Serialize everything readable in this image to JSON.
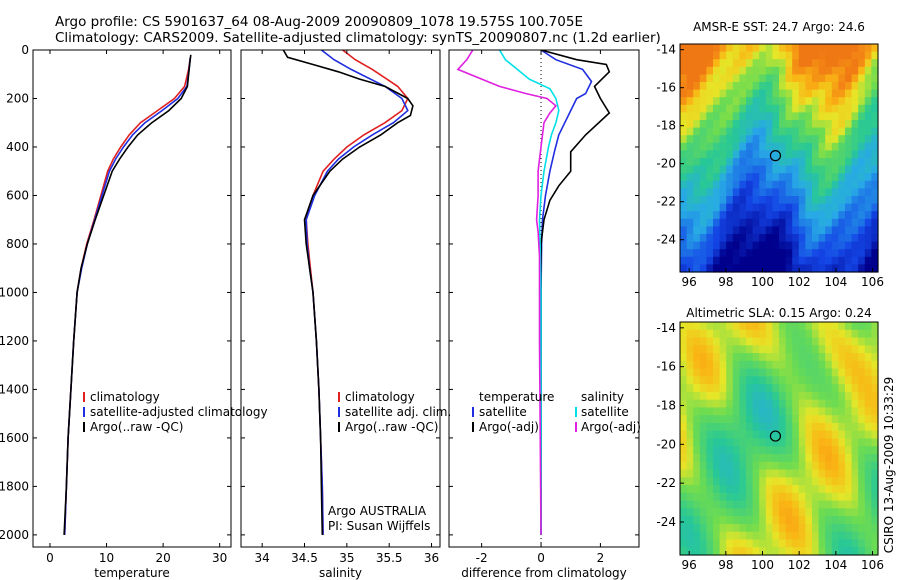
{
  "header": {
    "line1": "Argo profile: CS 5901637_64 08-Aug-2009 20090809_1078 19.575S 100.705E",
    "line2": "Climatology: CARS2009. Satellite-adjusted climatology: synTS_20090807.nc (1.2d earlier)"
  },
  "side_label": "CSIRO 13-Aug-2009 10:33:29",
  "chart_data": [
    {
      "type": "line",
      "xlabel": "temperature",
      "ylabel": "",
      "xlim": [
        -3,
        32
      ],
      "ylim": [
        2050,
        0
      ],
      "xticks": [
        0,
        10,
        20,
        30
      ],
      "yticks": [
        0,
        200,
        400,
        600,
        800,
        1000,
        1200,
        1400,
        1600,
        1800,
        2000
      ],
      "legend": [
        "climatology",
        "satellite-adjusted climatology",
        "Argo(..raw -QC)"
      ],
      "series": [
        {
          "name": "climatology",
          "color": "#e02020",
          "points": [
            [
              24.8,
              30
            ],
            [
              24.5,
              80
            ],
            [
              23.8,
              150
            ],
            [
              22.0,
              200
            ],
            [
              19.0,
              250
            ],
            [
              16.0,
              300
            ],
            [
              14.0,
              350
            ],
            [
              12.5,
              400
            ],
            [
              11.2,
              450
            ],
            [
              10.2,
              500
            ],
            [
              9.0,
              600
            ],
            [
              7.8,
              700
            ],
            [
              6.5,
              800
            ],
            [
              5.5,
              900
            ],
            [
              4.8,
              1000
            ],
            [
              4.2,
              1200
            ],
            [
              3.7,
              1400
            ],
            [
              3.2,
              1600
            ],
            [
              2.9,
              1800
            ],
            [
              2.6,
              2000
            ]
          ]
        },
        {
          "name": "satellite-adjusted climatology",
          "color": "#1f2ee0",
          "points": [
            [
              24.8,
              30
            ],
            [
              24.6,
              80
            ],
            [
              24.2,
              150
            ],
            [
              22.6,
              200
            ],
            [
              19.8,
              250
            ],
            [
              16.8,
              300
            ],
            [
              14.6,
              350
            ],
            [
              13.0,
              400
            ],
            [
              11.6,
              450
            ],
            [
              10.5,
              500
            ],
            [
              9.2,
              600
            ],
            [
              7.9,
              700
            ],
            [
              6.6,
              800
            ],
            [
              5.6,
              900
            ],
            [
              4.8,
              1000
            ],
            [
              4.2,
              1200
            ],
            [
              3.7,
              1400
            ],
            [
              3.2,
              1600
            ],
            [
              2.9,
              1800
            ],
            [
              2.6,
              2000
            ]
          ]
        },
        {
          "name": "Argo(..raw -QC)",
          "color": "#000000",
          "points": [
            [
              24.9,
              20
            ],
            [
              24.6,
              80
            ],
            [
              24.3,
              150
            ],
            [
              23.2,
              200
            ],
            [
              21.0,
              250
            ],
            [
              18.0,
              300
            ],
            [
              15.5,
              350
            ],
            [
              13.8,
              400
            ],
            [
              12.3,
              450
            ],
            [
              11.0,
              500
            ],
            [
              9.5,
              600
            ],
            [
              8.0,
              700
            ],
            [
              6.6,
              800
            ],
            [
              5.5,
              900
            ],
            [
              4.8,
              1000
            ],
            [
              4.2,
              1200
            ],
            [
              3.7,
              1400
            ],
            [
              3.2,
              1600
            ],
            [
              2.9,
              1800
            ],
            [
              2.5,
              2000
            ]
          ]
        }
      ]
    },
    {
      "type": "line",
      "xlabel": "salinity",
      "ylabel": "",
      "xlim": [
        33.75,
        36.1
      ],
      "ylim": [
        2050,
        0
      ],
      "xticks": [
        34,
        34.5,
        35,
        35.5,
        36
      ],
      "yticks": [
        0,
        200,
        400,
        600,
        800,
        1000,
        1200,
        1400,
        1600,
        1800,
        2000
      ],
      "legend": [
        "climatology",
        "satellite adj. clim.",
        "Argo(..raw -QC)"
      ],
      "annotation": [
        "Argo AUSTRALIA",
        "PI: Susan Wijffels"
      ],
      "series": [
        {
          "name": "climatology",
          "color": "#e02020",
          "points": [
            [
              34.95,
              0
            ],
            [
              35.1,
              40
            ],
            [
              35.3,
              80
            ],
            [
              35.6,
              150
            ],
            [
              35.72,
              200
            ],
            [
              35.65,
              250
            ],
            [
              35.45,
              300
            ],
            [
              35.2,
              350
            ],
            [
              35.0,
              400
            ],
            [
              34.85,
              450
            ],
            [
              34.72,
              500
            ],
            [
              34.6,
              600
            ],
            [
              34.52,
              700
            ],
            [
              34.54,
              800
            ],
            [
              34.57,
              900
            ],
            [
              34.6,
              1000
            ],
            [
              34.64,
              1200
            ],
            [
              34.67,
              1400
            ],
            [
              34.69,
              1600
            ],
            [
              34.71,
              1800
            ],
            [
              34.72,
              2000
            ]
          ]
        },
        {
          "name": "satellite adj. clim.",
          "color": "#1f2ee0",
          "points": [
            [
              34.7,
              0
            ],
            [
              34.85,
              40
            ],
            [
              35.05,
              80
            ],
            [
              35.45,
              150
            ],
            [
              35.65,
              200
            ],
            [
              35.72,
              250
            ],
            [
              35.55,
              300
            ],
            [
              35.3,
              350
            ],
            [
              35.08,
              400
            ],
            [
              34.9,
              450
            ],
            [
              34.77,
              500
            ],
            [
              34.62,
              600
            ],
            [
              34.52,
              700
            ],
            [
              34.53,
              800
            ],
            [
              34.56,
              900
            ],
            [
              34.6,
              1000
            ],
            [
              34.64,
              1200
            ],
            [
              34.67,
              1400
            ],
            [
              34.69,
              1600
            ],
            [
              34.71,
              1800
            ],
            [
              34.72,
              2000
            ]
          ]
        },
        {
          "name": "Argo(..raw -QC)",
          "color": "#000000",
          "points": [
            [
              34.25,
              0
            ],
            [
              34.3,
              30
            ],
            [
              34.6,
              60
            ],
            [
              34.9,
              90
            ],
            [
              35.15,
              120
            ],
            [
              35.45,
              150
            ],
            [
              35.72,
              200
            ],
            [
              35.78,
              230
            ],
            [
              35.75,
              270
            ],
            [
              35.6,
              300
            ],
            [
              35.4,
              350
            ],
            [
              35.15,
              400
            ],
            [
              34.95,
              450
            ],
            [
              34.8,
              500
            ],
            [
              34.6,
              600
            ],
            [
              34.5,
              700
            ],
            [
              34.52,
              800
            ],
            [
              34.56,
              900
            ],
            [
              34.6,
              1000
            ],
            [
              34.64,
              1200
            ],
            [
              34.67,
              1400
            ],
            [
              34.69,
              1600
            ],
            [
              34.7,
              1800
            ],
            [
              34.71,
              2000
            ]
          ]
        }
      ]
    },
    {
      "type": "line",
      "xlabel": "difference from climatology",
      "ylabel": "",
      "xlim": [
        -3.1,
        3.3
      ],
      "ylim": [
        2050,
        0
      ],
      "xticks": [
        -2,
        0,
        2
      ],
      "yticks": [
        0,
        200,
        400,
        600,
        800,
        1000,
        1200,
        1400,
        1600,
        1800,
        2000
      ],
      "legend_groups": [
        {
          "title": "temperature",
          "items": [
            "satellite",
            "Argo(-adj)"
          ]
        },
        {
          "title": "salinity",
          "items": [
            "satellite",
            "Argo(-adj)"
          ]
        }
      ],
      "series": [
        {
          "name": "temperature satellite",
          "color": "#1f2ee0",
          "points": [
            [
              0.0,
              0
            ],
            [
              0.5,
              40
            ],
            [
              1.4,
              80
            ],
            [
              1.7,
              130
            ],
            [
              1.5,
              180
            ],
            [
              1.2,
              200
            ],
            [
              1.0,
              250
            ],
            [
              0.8,
              300
            ],
            [
              0.6,
              350
            ],
            [
              0.45,
              420
            ],
            [
              0.3,
              500
            ],
            [
              0.15,
              600
            ],
            [
              0.05,
              700
            ],
            [
              0.02,
              800
            ],
            [
              0.0,
              1000
            ],
            [
              0.0,
              2000
            ]
          ]
        },
        {
          "name": "temperature Argo(-adj)",
          "color": "#000000",
          "points": [
            [
              0.0,
              0
            ],
            [
              1.2,
              40
            ],
            [
              2.2,
              60
            ],
            [
              2.3,
              90
            ],
            [
              1.8,
              150
            ],
            [
              2.0,
              200
            ],
            [
              2.3,
              260
            ],
            [
              1.5,
              350
            ],
            [
              1.0,
              420
            ],
            [
              1.0,
              500
            ],
            [
              0.6,
              560
            ],
            [
              0.3,
              620
            ],
            [
              0.1,
              700
            ],
            [
              0.0,
              800
            ],
            [
              0.0,
              1000
            ],
            [
              0.0,
              2000
            ]
          ]
        },
        {
          "name": "salinity satellite",
          "color": "#00e0e8",
          "points": [
            [
              -1.4,
              0
            ],
            [
              -1.2,
              40
            ],
            [
              -0.8,
              80
            ],
            [
              -0.4,
              120
            ],
            [
              0.3,
              160
            ],
            [
              0.5,
              200
            ],
            [
              0.6,
              250
            ],
            [
              0.5,
              300
            ],
            [
              0.35,
              350
            ],
            [
              0.25,
              400
            ],
            [
              0.1,
              500
            ],
            [
              0.0,
              600
            ],
            [
              -0.05,
              700
            ],
            [
              -0.03,
              800
            ],
            [
              0.0,
              1000
            ],
            [
              0.0,
              2000
            ]
          ]
        },
        {
          "name": "salinity Argo(-adj)",
          "color": "#e020e0",
          "points": [
            [
              -2.3,
              0
            ],
            [
              -2.5,
              40
            ],
            [
              -2.8,
              80
            ],
            [
              -1.4,
              150
            ],
            [
              -0.5,
              180
            ],
            [
              0.2,
              200
            ],
            [
              0.5,
              230
            ],
            [
              0.3,
              260
            ],
            [
              0.1,
              300
            ],
            [
              0.0,
              400
            ],
            [
              -0.1,
              500
            ],
            [
              -0.1,
              600
            ],
            [
              -0.15,
              700
            ],
            [
              -0.1,
              750
            ],
            [
              -0.05,
              850
            ],
            [
              -0.05,
              1000
            ],
            [
              -0.05,
              1200
            ],
            [
              0.0,
              2000
            ]
          ]
        }
      ]
    },
    {
      "type": "heatmap",
      "title": "AMSR-E SST: 24.7 Argo: 24.6",
      "xlim": [
        95.5,
        106.3
      ],
      "ylim": [
        -25.7,
        -13.7
      ],
      "xticks": [
        96,
        98,
        100,
        102,
        104,
        106
      ],
      "yticks": [
        -14,
        -16,
        -18,
        -20,
        -22,
        -24
      ],
      "marker": {
        "lon": 100.705,
        "lat": -19.575
      }
    },
    {
      "type": "heatmap",
      "title": "Altimetric SLA: 0.15 Argo: 0.24",
      "xlim": [
        95.5,
        106.3
      ],
      "ylim": [
        -25.7,
        -13.7
      ],
      "xticks": [
        96,
        98,
        100,
        102,
        104,
        106
      ],
      "yticks": [
        -14,
        -16,
        -18,
        -20,
        -22,
        -24
      ],
      "marker": {
        "lon": 100.705,
        "lat": -19.575
      }
    }
  ]
}
